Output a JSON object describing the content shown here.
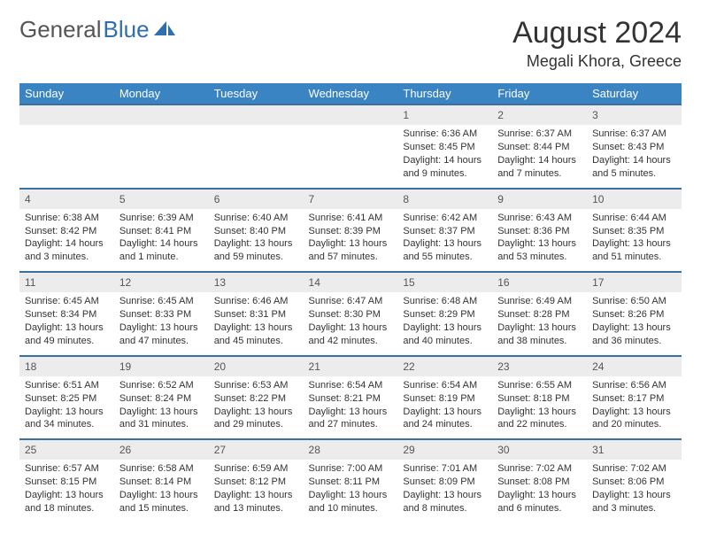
{
  "brand": {
    "part1": "General",
    "part2": "Blue"
  },
  "header": {
    "title": "August 2024",
    "location": "Megali Khora, Greece"
  },
  "colors": {
    "header_bg": "#3b84c4",
    "row_border": "#3b6f9e",
    "daynum_bg": "#ececec",
    "text": "#333333"
  },
  "days": [
    "Sunday",
    "Monday",
    "Tuesday",
    "Wednesday",
    "Thursday",
    "Friday",
    "Saturday"
  ],
  "weeks": [
    [
      null,
      null,
      null,
      null,
      {
        "n": "1",
        "sr": "Sunrise: 6:36 AM",
        "ss": "Sunset: 8:45 PM",
        "d1": "Daylight: 14 hours",
        "d2": "and 9 minutes."
      },
      {
        "n": "2",
        "sr": "Sunrise: 6:37 AM",
        "ss": "Sunset: 8:44 PM",
        "d1": "Daylight: 14 hours",
        "d2": "and 7 minutes."
      },
      {
        "n": "3",
        "sr": "Sunrise: 6:37 AM",
        "ss": "Sunset: 8:43 PM",
        "d1": "Daylight: 14 hours",
        "d2": "and 5 minutes."
      }
    ],
    [
      {
        "n": "4",
        "sr": "Sunrise: 6:38 AM",
        "ss": "Sunset: 8:42 PM",
        "d1": "Daylight: 14 hours",
        "d2": "and 3 minutes."
      },
      {
        "n": "5",
        "sr": "Sunrise: 6:39 AM",
        "ss": "Sunset: 8:41 PM",
        "d1": "Daylight: 14 hours",
        "d2": "and 1 minute."
      },
      {
        "n": "6",
        "sr": "Sunrise: 6:40 AM",
        "ss": "Sunset: 8:40 PM",
        "d1": "Daylight: 13 hours",
        "d2": "and 59 minutes."
      },
      {
        "n": "7",
        "sr": "Sunrise: 6:41 AM",
        "ss": "Sunset: 8:39 PM",
        "d1": "Daylight: 13 hours",
        "d2": "and 57 minutes."
      },
      {
        "n": "8",
        "sr": "Sunrise: 6:42 AM",
        "ss": "Sunset: 8:37 PM",
        "d1": "Daylight: 13 hours",
        "d2": "and 55 minutes."
      },
      {
        "n": "9",
        "sr": "Sunrise: 6:43 AM",
        "ss": "Sunset: 8:36 PM",
        "d1": "Daylight: 13 hours",
        "d2": "and 53 minutes."
      },
      {
        "n": "10",
        "sr": "Sunrise: 6:44 AM",
        "ss": "Sunset: 8:35 PM",
        "d1": "Daylight: 13 hours",
        "d2": "and 51 minutes."
      }
    ],
    [
      {
        "n": "11",
        "sr": "Sunrise: 6:45 AM",
        "ss": "Sunset: 8:34 PM",
        "d1": "Daylight: 13 hours",
        "d2": "and 49 minutes."
      },
      {
        "n": "12",
        "sr": "Sunrise: 6:45 AM",
        "ss": "Sunset: 8:33 PM",
        "d1": "Daylight: 13 hours",
        "d2": "and 47 minutes."
      },
      {
        "n": "13",
        "sr": "Sunrise: 6:46 AM",
        "ss": "Sunset: 8:31 PM",
        "d1": "Daylight: 13 hours",
        "d2": "and 45 minutes."
      },
      {
        "n": "14",
        "sr": "Sunrise: 6:47 AM",
        "ss": "Sunset: 8:30 PM",
        "d1": "Daylight: 13 hours",
        "d2": "and 42 minutes."
      },
      {
        "n": "15",
        "sr": "Sunrise: 6:48 AM",
        "ss": "Sunset: 8:29 PM",
        "d1": "Daylight: 13 hours",
        "d2": "and 40 minutes."
      },
      {
        "n": "16",
        "sr": "Sunrise: 6:49 AM",
        "ss": "Sunset: 8:28 PM",
        "d1": "Daylight: 13 hours",
        "d2": "and 38 minutes."
      },
      {
        "n": "17",
        "sr": "Sunrise: 6:50 AM",
        "ss": "Sunset: 8:26 PM",
        "d1": "Daylight: 13 hours",
        "d2": "and 36 minutes."
      }
    ],
    [
      {
        "n": "18",
        "sr": "Sunrise: 6:51 AM",
        "ss": "Sunset: 8:25 PM",
        "d1": "Daylight: 13 hours",
        "d2": "and 34 minutes."
      },
      {
        "n": "19",
        "sr": "Sunrise: 6:52 AM",
        "ss": "Sunset: 8:24 PM",
        "d1": "Daylight: 13 hours",
        "d2": "and 31 minutes."
      },
      {
        "n": "20",
        "sr": "Sunrise: 6:53 AM",
        "ss": "Sunset: 8:22 PM",
        "d1": "Daylight: 13 hours",
        "d2": "and 29 minutes."
      },
      {
        "n": "21",
        "sr": "Sunrise: 6:54 AM",
        "ss": "Sunset: 8:21 PM",
        "d1": "Daylight: 13 hours",
        "d2": "and 27 minutes."
      },
      {
        "n": "22",
        "sr": "Sunrise: 6:54 AM",
        "ss": "Sunset: 8:19 PM",
        "d1": "Daylight: 13 hours",
        "d2": "and 24 minutes."
      },
      {
        "n": "23",
        "sr": "Sunrise: 6:55 AM",
        "ss": "Sunset: 8:18 PM",
        "d1": "Daylight: 13 hours",
        "d2": "and 22 minutes."
      },
      {
        "n": "24",
        "sr": "Sunrise: 6:56 AM",
        "ss": "Sunset: 8:17 PM",
        "d1": "Daylight: 13 hours",
        "d2": "and 20 minutes."
      }
    ],
    [
      {
        "n": "25",
        "sr": "Sunrise: 6:57 AM",
        "ss": "Sunset: 8:15 PM",
        "d1": "Daylight: 13 hours",
        "d2": "and 18 minutes."
      },
      {
        "n": "26",
        "sr": "Sunrise: 6:58 AM",
        "ss": "Sunset: 8:14 PM",
        "d1": "Daylight: 13 hours",
        "d2": "and 15 minutes."
      },
      {
        "n": "27",
        "sr": "Sunrise: 6:59 AM",
        "ss": "Sunset: 8:12 PM",
        "d1": "Daylight: 13 hours",
        "d2": "and 13 minutes."
      },
      {
        "n": "28",
        "sr": "Sunrise: 7:00 AM",
        "ss": "Sunset: 8:11 PM",
        "d1": "Daylight: 13 hours",
        "d2": "and 10 minutes."
      },
      {
        "n": "29",
        "sr": "Sunrise: 7:01 AM",
        "ss": "Sunset: 8:09 PM",
        "d1": "Daylight: 13 hours",
        "d2": "and 8 minutes."
      },
      {
        "n": "30",
        "sr": "Sunrise: 7:02 AM",
        "ss": "Sunset: 8:08 PM",
        "d1": "Daylight: 13 hours",
        "d2": "and 6 minutes."
      },
      {
        "n": "31",
        "sr": "Sunrise: 7:02 AM",
        "ss": "Sunset: 8:06 PM",
        "d1": "Daylight: 13 hours",
        "d2": "and 3 minutes."
      }
    ]
  ]
}
